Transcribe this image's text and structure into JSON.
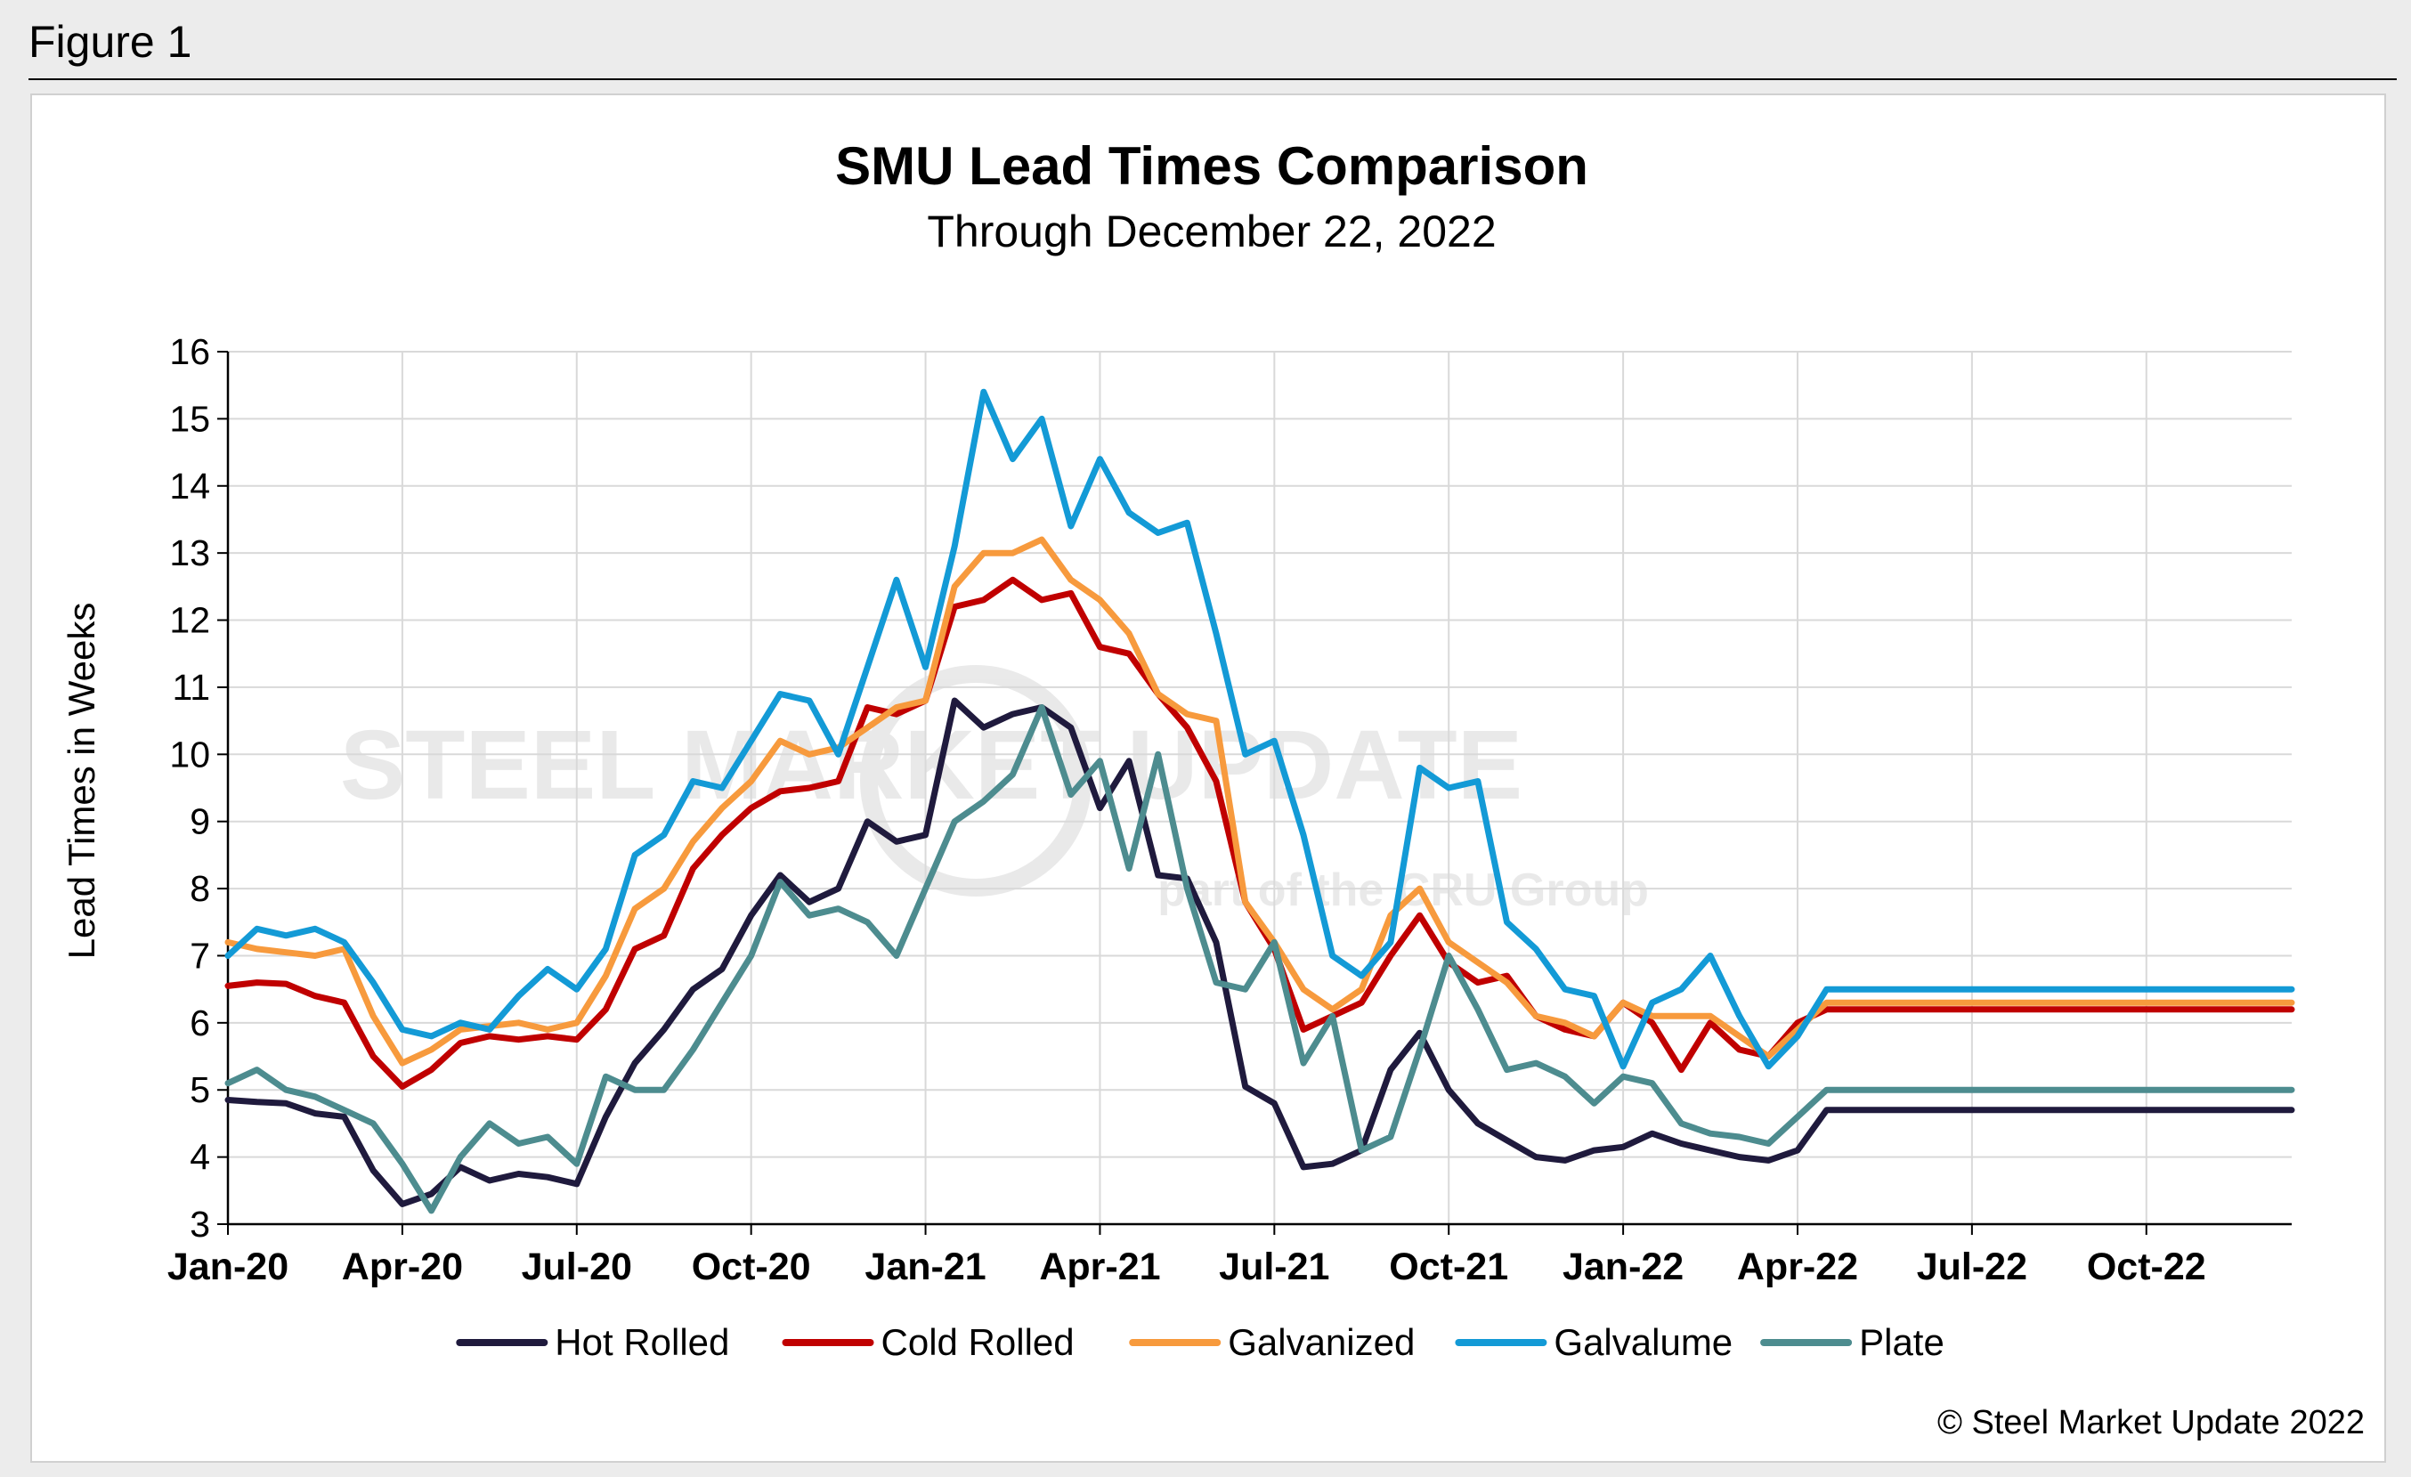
{
  "figure_label": "Figure 1",
  "credit": "© Steel Market Update 2022",
  "watermark": {
    "main": "STEEL MARKET UPDATE",
    "sub": "part of the CRU Group"
  },
  "chart_data": {
    "type": "line",
    "title": "SMU Lead Times Comparison",
    "subtitle": "Through December 22, 2022",
    "ylabel": "Lead Times in Weeks",
    "xlabel": "",
    "ylim": [
      3,
      16
    ],
    "yticks": [
      3,
      4,
      5,
      6,
      7,
      8,
      9,
      10,
      11,
      12,
      13,
      14,
      15,
      16
    ],
    "xlim": [
      0,
      35.5
    ],
    "xticks": [
      {
        "label": "Jan-20",
        "x": 0
      },
      {
        "label": "Apr-20",
        "x": 3
      },
      {
        "label": "Jul-20",
        "x": 6
      },
      {
        "label": "Oct-20",
        "x": 9
      },
      {
        "label": "Jan-21",
        "x": 12
      },
      {
        "label": "Apr-21",
        "x": 15
      },
      {
        "label": "Jul-21",
        "x": 18
      },
      {
        "label": "Oct-21",
        "x": 21
      },
      {
        "label": "Jan-22",
        "x": 24
      },
      {
        "label": "Apr-22",
        "x": 27
      },
      {
        "label": "Jul-22",
        "x": 30
      },
      {
        "label": "Oct-22",
        "x": 33
      }
    ],
    "grid": true,
    "legend_position": "bottom",
    "x": [
      0,
      0.5,
      1,
      1.5,
      2,
      2.5,
      3,
      3.5,
      4,
      4.5,
      5,
      5.5,
      6,
      6.5,
      7,
      7.5,
      8,
      8.5,
      9,
      9.5,
      10,
      10.5,
      11,
      11.5,
      12,
      12.5,
      13,
      13.5,
      14,
      14.5,
      15,
      15.5,
      16,
      16.5,
      17,
      17.5,
      18,
      18.5,
      19,
      19.5,
      20,
      20.5,
      21,
      21.5,
      22,
      22.5,
      23,
      23.5,
      24,
      24.5,
      25,
      25.5,
      26,
      26.5,
      27,
      27.5,
      28,
      28.5,
      29,
      29.5,
      30,
      30.5,
      31,
      31.5,
      32,
      32.5,
      33,
      33.5,
      34,
      34.5,
      35,
      35.5
    ],
    "series": [
      {
        "name": "Hot Rolled",
        "color": "#1f1a3d",
        "values": [
          4.85,
          4.82,
          4.8,
          4.65,
          4.6,
          3.8,
          3.3,
          3.45,
          3.85,
          3.65,
          3.75,
          3.7,
          3.6,
          4.6,
          5.4,
          5.9,
          6.5,
          6.8,
          7.6,
          8.2,
          7.8,
          8.0,
          9.0,
          8.7,
          8.8,
          10.8,
          10.4,
          10.6,
          10.7,
          10.4,
          9.2,
          9.9,
          8.2,
          8.15,
          7.2,
          5.05,
          4.8,
          3.85,
          3.9,
          4.1,
          5.3,
          5.85,
          5.0,
          4.5,
          4.25,
          4.0,
          3.95,
          4.1,
          4.15,
          4.35,
          4.2,
          4.1,
          4.0,
          3.95,
          4.1,
          4.7,
          4.7,
          4.7,
          4.7,
          4.7,
          4.7,
          4.7,
          4.7,
          4.7,
          4.7,
          4.7,
          4.7,
          4.7,
          4.7,
          4.7,
          4.7,
          4.7
        ]
      },
      {
        "name": "Cold Rolled",
        "color": "#c00000",
        "values": [
          6.55,
          6.6,
          6.58,
          6.4,
          6.3,
          5.5,
          5.05,
          5.3,
          5.7,
          5.8,
          5.75,
          5.8,
          5.75,
          6.2,
          7.1,
          7.3,
          8.3,
          8.8,
          9.2,
          9.45,
          9.5,
          9.6,
          10.7,
          10.6,
          10.8,
          12.2,
          12.3,
          12.6,
          12.3,
          12.4,
          11.6,
          11.5,
          10.9,
          10.4,
          9.6,
          7.8,
          7.1,
          5.9,
          6.1,
          6.3,
          7.0,
          7.6,
          6.9,
          6.6,
          6.7,
          6.1,
          5.9,
          5.8,
          6.3,
          6.0,
          5.3,
          6.0,
          5.6,
          5.5,
          6.0,
          6.2,
          6.2,
          6.2,
          6.2,
          6.2,
          6.2,
          6.2,
          6.2,
          6.2,
          6.2,
          6.2,
          6.2,
          6.2,
          6.2,
          6.2,
          6.2,
          6.2
        ]
      },
      {
        "name": "Galvanized",
        "color": "#f79a3d",
        "values": [
          7.2,
          7.1,
          7.05,
          7.0,
          7.1,
          6.1,
          5.4,
          5.6,
          5.9,
          5.95,
          6.0,
          5.9,
          6.0,
          6.7,
          7.7,
          8.0,
          8.7,
          9.2,
          9.6,
          10.2,
          10.0,
          10.1,
          10.4,
          10.7,
          10.8,
          12.5,
          13.0,
          13.0,
          13.2,
          12.6,
          12.3,
          11.8,
          10.9,
          10.6,
          10.5,
          7.8,
          7.2,
          6.5,
          6.2,
          6.5,
          7.6,
          8.0,
          7.2,
          6.9,
          6.6,
          6.1,
          6.0,
          5.8,
          6.3,
          6.1,
          6.1,
          6.1,
          5.8,
          5.5,
          5.9,
          6.3,
          6.3,
          6.3,
          6.3,
          6.3,
          6.3,
          6.3,
          6.3,
          6.3,
          6.3,
          6.3,
          6.3,
          6.3,
          6.3,
          6.3,
          6.3,
          6.3
        ]
      },
      {
        "name": "Galvalume",
        "color": "#139ad6",
        "values": [
          7.0,
          7.4,
          7.3,
          7.4,
          7.2,
          6.6,
          5.9,
          5.8,
          6.0,
          5.9,
          6.4,
          6.8,
          6.5,
          7.1,
          8.5,
          8.8,
          9.6,
          9.5,
          10.2,
          10.9,
          10.8,
          10.0,
          11.3,
          12.6,
          11.3,
          13.1,
          15.4,
          14.4,
          15.0,
          13.4,
          14.4,
          13.6,
          13.3,
          13.45,
          11.8,
          10.0,
          10.2,
          8.8,
          7.0,
          6.7,
          7.2,
          9.8,
          9.5,
          9.6,
          7.5,
          7.1,
          6.5,
          6.4,
          5.35,
          6.3,
          6.5,
          7.0,
          6.1,
          5.35,
          5.8,
          6.5,
          6.5,
          6.5,
          6.5,
          6.5,
          6.5,
          6.5,
          6.5,
          6.5,
          6.5,
          6.5,
          6.5,
          6.5,
          6.5,
          6.5,
          6.5,
          6.5
        ]
      },
      {
        "name": "Plate",
        "color": "#4d8c8f",
        "values": [
          5.1,
          5.3,
          5.0,
          4.9,
          4.7,
          4.5,
          3.9,
          3.2,
          4.0,
          4.5,
          4.2,
          4.3,
          3.9,
          5.2,
          5.0,
          5.0,
          5.6,
          6.3,
          7.0,
          8.1,
          7.6,
          7.7,
          7.5,
          7.0,
          8.0,
          9.0,
          9.3,
          9.7,
          10.7,
          9.4,
          9.9,
          8.3,
          10.0,
          8.0,
          6.6,
          6.5,
          7.2,
          5.4,
          6.1,
          4.1,
          4.3,
          5.6,
          7.0,
          6.2,
          5.3,
          5.4,
          5.2,
          4.8,
          5.2,
          5.1,
          4.5,
          4.35,
          4.3,
          4.2,
          4.6,
          5.0,
          5.0,
          5.0,
          5.0,
          5.0,
          5.0,
          5.0,
          5.0,
          5.0,
          5.0,
          5.0,
          5.0,
          5.0,
          5.0,
          5.0,
          5.0,
          5.0
        ]
      }
    ]
  }
}
